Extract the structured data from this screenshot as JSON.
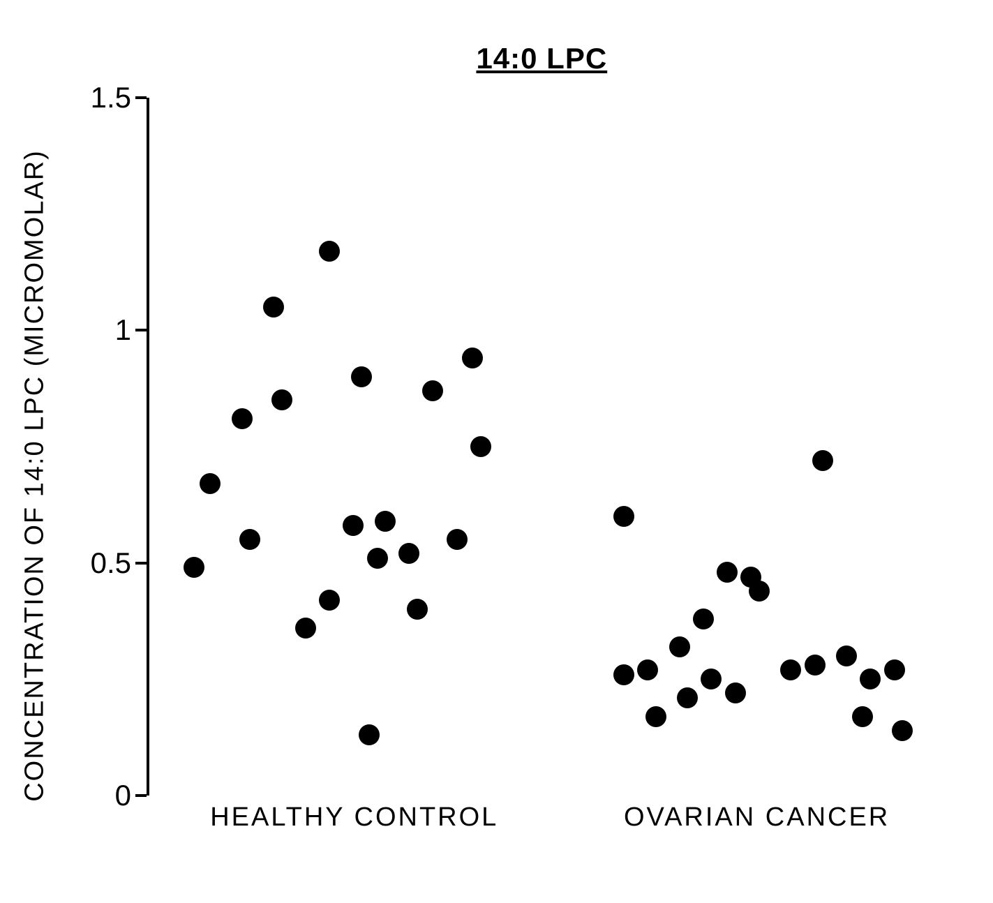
{
  "chart": {
    "type": "scatter",
    "title": "14:0 LPC",
    "title_fontsize": 42,
    "title_underline": true,
    "ylabel": "CONCENTRATION OF 14:0 LPC (MICROMOLAR)",
    "label_fontsize": 38,
    "background_color": "#ffffff",
    "axis_color": "#000000",
    "axis_width": 4,
    "ylim": [
      0,
      1.5
    ],
    "yticks": [
      0,
      0.5,
      1,
      1.5
    ],
    "ytick_labels": [
      "0",
      "0.5",
      "1",
      "1.5"
    ],
    "tick_length": 16,
    "marker_size": 30,
    "marker_color": "#000000",
    "categories": [
      {
        "label": "HEALTHY CONTROL",
        "x_center": 0.27,
        "label_x_offset": 0.08,
        "points": [
          {
            "x": 0.06,
            "y": 0.49
          },
          {
            "x": 0.08,
            "y": 0.67
          },
          {
            "x": 0.12,
            "y": 0.81
          },
          {
            "x": 0.13,
            "y": 0.55
          },
          {
            "x": 0.16,
            "y": 1.05
          },
          {
            "x": 0.17,
            "y": 0.85
          },
          {
            "x": 0.2,
            "y": 0.36
          },
          {
            "x": 0.23,
            "y": 1.17
          },
          {
            "x": 0.23,
            "y": 0.42
          },
          {
            "x": 0.26,
            "y": 0.58
          },
          {
            "x": 0.27,
            "y": 0.9
          },
          {
            "x": 0.28,
            "y": 0.13
          },
          {
            "x": 0.29,
            "y": 0.51
          },
          {
            "x": 0.3,
            "y": 0.59
          },
          {
            "x": 0.33,
            "y": 0.52
          },
          {
            "x": 0.34,
            "y": 0.4
          },
          {
            "x": 0.36,
            "y": 0.87
          },
          {
            "x": 0.39,
            "y": 0.55
          },
          {
            "x": 0.41,
            "y": 0.94
          },
          {
            "x": 0.42,
            "y": 0.75
          }
        ]
      },
      {
        "label": "OVARIAN CANCER",
        "x_center": 0.77,
        "label_x_offset": 0.6,
        "points": [
          {
            "x": 0.6,
            "y": 0.6
          },
          {
            "x": 0.6,
            "y": 0.26
          },
          {
            "x": 0.63,
            "y": 0.27
          },
          {
            "x": 0.64,
            "y": 0.17
          },
          {
            "x": 0.67,
            "y": 0.32
          },
          {
            "x": 0.68,
            "y": 0.21
          },
          {
            "x": 0.7,
            "y": 0.38
          },
          {
            "x": 0.71,
            "y": 0.25
          },
          {
            "x": 0.73,
            "y": 0.48
          },
          {
            "x": 0.74,
            "y": 0.22
          },
          {
            "x": 0.76,
            "y": 0.47
          },
          {
            "x": 0.77,
            "y": 0.44
          },
          {
            "x": 0.81,
            "y": 0.27
          },
          {
            "x": 0.84,
            "y": 0.28
          },
          {
            "x": 0.85,
            "y": 0.72
          },
          {
            "x": 0.88,
            "y": 0.3
          },
          {
            "x": 0.9,
            "y": 0.17
          },
          {
            "x": 0.91,
            "y": 0.25
          },
          {
            "x": 0.94,
            "y": 0.27
          },
          {
            "x": 0.95,
            "y": 0.14
          }
        ]
      }
    ]
  }
}
